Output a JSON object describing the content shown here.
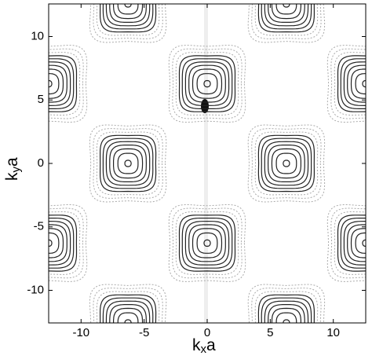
{
  "chart_data": {
    "type": "contour",
    "xlabel": [
      "k",
      "x",
      "a"
    ],
    "ylabel": [
      "k",
      "y",
      "a"
    ],
    "xlim": [
      -12.57,
      12.57
    ],
    "ylim": [
      -12.57,
      12.57
    ],
    "xticks": [
      -10,
      -5,
      0,
      5,
      10
    ],
    "yticks": [
      -10,
      -5,
      0,
      5,
      10
    ],
    "centers": {
      "x": [
        -6.28,
        6.28,
        -12.57,
        0,
        12.57,
        -6.28,
        6.28,
        -12.57,
        0,
        12.57,
        -6.28,
        6.28
      ],
      "y": [
        12.57,
        12.57,
        6.28,
        6.28,
        6.28,
        0,
        0,
        -6.28,
        -6.28,
        -6.28,
        -12.57,
        -12.57
      ]
    },
    "levels": [
      0.25,
      0.8,
      1.15,
      1.45,
      1.72,
      1.97,
      2.2,
      2.45,
      2.7,
      2.95
    ],
    "color": "#222",
    "outer_color": "#aaa",
    "outer_from_level": 7
  }
}
